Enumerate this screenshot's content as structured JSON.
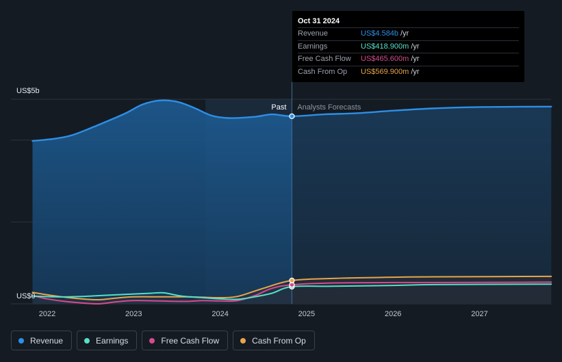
{
  "chart_data": {
    "type": "line",
    "y_axis_labels": {
      "top": "US$5b",
      "bottom": "US$0"
    },
    "ylim": [
      0,
      5000
    ],
    "xlim": [
      2021.75,
      2027.83
    ],
    "x_ticks": [
      "2022",
      "2023",
      "2024",
      "2025",
      "2026",
      "2027"
    ],
    "past_label": "Past",
    "forecast_label": "Analysts Forecasts",
    "divider_x": 2024.83,
    "highlight_start_x": 2023.83,
    "series": [
      {
        "name": "Revenue",
        "unit": "US$m",
        "color": "#2d8fe6",
        "points": [
          [
            2021.83,
            3980
          ],
          [
            2022.1,
            4040
          ],
          [
            2022.3,
            4130
          ],
          [
            2022.6,
            4380
          ],
          [
            2022.9,
            4650
          ],
          [
            2023.1,
            4870
          ],
          [
            2023.3,
            4970
          ],
          [
            2023.5,
            4940
          ],
          [
            2023.7,
            4790
          ],
          [
            2023.9,
            4600
          ],
          [
            2024.1,
            4540
          ],
          [
            2024.4,
            4570
          ],
          [
            2024.6,
            4630
          ],
          [
            2024.83,
            4584
          ],
          [
            2025.2,
            4630
          ],
          [
            2025.6,
            4660
          ],
          [
            2026.0,
            4720
          ],
          [
            2026.5,
            4780
          ],
          [
            2027.0,
            4810
          ],
          [
            2027.83,
            4820
          ]
        ]
      },
      {
        "name": "Earnings",
        "unit": "US$m",
        "color": "#56e0c8",
        "points": [
          [
            2021.83,
            190
          ],
          [
            2022.1,
            170
          ],
          [
            2022.4,
            180
          ],
          [
            2022.7,
            210
          ],
          [
            2023.0,
            240
          ],
          [
            2023.2,
            260
          ],
          [
            2023.35,
            270
          ],
          [
            2023.55,
            190
          ],
          [
            2023.8,
            150
          ],
          [
            2024.0,
            120
          ],
          [
            2024.2,
            110
          ],
          [
            2024.4,
            170
          ],
          [
            2024.6,
            260
          ],
          [
            2024.83,
            418.9
          ],
          [
            2025.3,
            430
          ],
          [
            2026.0,
            450
          ],
          [
            2026.5,
            470
          ],
          [
            2027.83,
            480
          ]
        ]
      },
      {
        "name": "Free Cash Flow",
        "unit": "US$m",
        "color": "#d84a8f",
        "points": [
          [
            2021.83,
            200
          ],
          [
            2022.0,
            120
          ],
          [
            2022.2,
            60
          ],
          [
            2022.4,
            20
          ],
          [
            2022.6,
            0
          ],
          [
            2022.8,
            50
          ],
          [
            2023.0,
            80
          ],
          [
            2023.3,
            70
          ],
          [
            2023.6,
            60
          ],
          [
            2023.8,
            80
          ],
          [
            2024.0,
            70
          ],
          [
            2024.2,
            80
          ],
          [
            2024.4,
            200
          ],
          [
            2024.6,
            380
          ],
          [
            2024.83,
            465.6
          ],
          [
            2025.3,
            510
          ],
          [
            2026.0,
            520
          ],
          [
            2026.5,
            520
          ],
          [
            2027.83,
            530
          ]
        ]
      },
      {
        "name": "Cash From Op",
        "unit": "US$m",
        "color": "#e8a54b",
        "points": [
          [
            2021.83,
            280
          ],
          [
            2022.1,
            190
          ],
          [
            2022.4,
            120
          ],
          [
            2022.6,
            100
          ],
          [
            2022.8,
            140
          ],
          [
            2023.0,
            170
          ],
          [
            2023.3,
            170
          ],
          [
            2023.6,
            170
          ],
          [
            2023.8,
            160
          ],
          [
            2024.0,
            150
          ],
          [
            2024.2,
            180
          ],
          [
            2024.5,
            380
          ],
          [
            2024.83,
            569.9
          ],
          [
            2025.3,
            620
          ],
          [
            2026.0,
            650
          ],
          [
            2026.5,
            660
          ],
          [
            2027.83,
            670
          ]
        ]
      }
    ]
  },
  "tooltip": {
    "date": "Oct 31 2024",
    "rows": [
      {
        "label": "Revenue",
        "value": "US$4.584b",
        "unit": "/yr",
        "color": "#2d8fe6"
      },
      {
        "label": "Earnings",
        "value": "US$418.900m",
        "unit": "/yr",
        "color": "#56e0c8"
      },
      {
        "label": "Free Cash Flow",
        "value": "US$465.600m",
        "unit": "/yr",
        "color": "#d84a8f"
      },
      {
        "label": "Cash From Op",
        "value": "US$569.900m",
        "unit": "/yr",
        "color": "#e8a54b"
      }
    ]
  },
  "legend": [
    {
      "label": "Revenue",
      "color": "#2d8fe6"
    },
    {
      "label": "Earnings",
      "color": "#56e0c8"
    },
    {
      "label": "Free Cash Flow",
      "color": "#d84a8f"
    },
    {
      "label": "Cash From Op",
      "color": "#e8a54b"
    }
  ]
}
